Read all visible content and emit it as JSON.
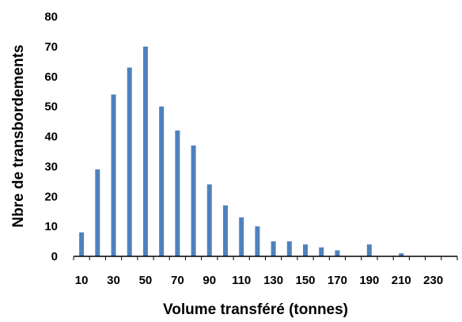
{
  "chart_data": {
    "type": "bar",
    "xlabel": "Volume transféré (tonnes)",
    "ylabel": "Nbre de transbordements",
    "ylim": [
      0,
      80
    ],
    "yticks": [
      0,
      10,
      20,
      30,
      40,
      50,
      60,
      70,
      80
    ],
    "categories": [
      10,
      20,
      30,
      40,
      50,
      60,
      70,
      80,
      90,
      100,
      110,
      120,
      130,
      140,
      150,
      160,
      170,
      180,
      190,
      200,
      210,
      220,
      230,
      240
    ],
    "x_tick_labels": [
      "10",
      "30",
      "50",
      "70",
      "90",
      "110",
      "130",
      "150",
      "170",
      "190",
      "210",
      "230"
    ],
    "values": [
      8,
      29,
      54,
      63,
      70,
      50,
      42,
      37,
      24,
      17,
      13,
      10,
      5,
      5,
      4,
      3,
      2,
      0,
      4,
      0,
      1,
      0,
      0,
      0
    ],
    "bar_color": "#4f81bd",
    "grid": false,
    "legend": "none"
  }
}
